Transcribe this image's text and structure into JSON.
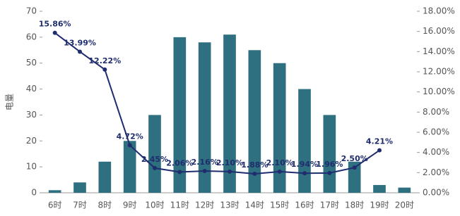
{
  "chart_data": {
    "type": "bar-line",
    "y_label": "电量",
    "categories": [
      "6时",
      "7时",
      "8时",
      "9时",
      "10时",
      "11时",
      "12时",
      "13时",
      "14时",
      "15时",
      "16时",
      "17时",
      "18时",
      "19时",
      "20时"
    ],
    "series": [
      {
        "type": "bar",
        "color": "#2e6f80",
        "values": [
          1,
          4,
          12,
          20,
          30,
          60,
          58,
          61,
          55,
          50,
          40,
          30,
          12,
          3,
          2
        ]
      },
      {
        "type": "line",
        "axis": "y2",
        "color": "#1f2d6e",
        "values": [
          15.86,
          13.99,
          12.22,
          4.72,
          2.45,
          2.06,
          2.16,
          2.1,
          1.88,
          2.1,
          1.94,
          1.96,
          2.5,
          4.21,
          null
        ],
        "value_labels": [
          "15.86%",
          "13.99%",
          "12.22%",
          "4.72%",
          "2.45%",
          "2.06%",
          "2.16%",
          "2.10%",
          "1.88%",
          "2.10%",
          "1.94%",
          "1.96%",
          "2.50%",
          "4.21%",
          null
        ]
      }
    ],
    "ylim": [
      0,
      70
    ],
    "yticks": [
      0,
      10,
      20,
      30,
      40,
      50,
      60,
      70
    ],
    "y2lim": [
      0,
      18
    ],
    "y2ticks": [
      {
        "value": 0,
        "label": "0.00%"
      },
      {
        "value": 2,
        "label": "2.00%"
      },
      {
        "value": 4,
        "label": "4.00%"
      },
      {
        "value": 6,
        "label": "6.00%"
      },
      {
        "value": 8,
        "label": "8.00%"
      },
      {
        "value": 10,
        "label": "10.00%"
      },
      {
        "value": 12,
        "label": "12.00%"
      },
      {
        "value": 14,
        "label": "14.00%"
      },
      {
        "value": 16,
        "label": "16.00%"
      },
      {
        "value": 18,
        "label": "18.00%"
      }
    ],
    "grid": false
  }
}
